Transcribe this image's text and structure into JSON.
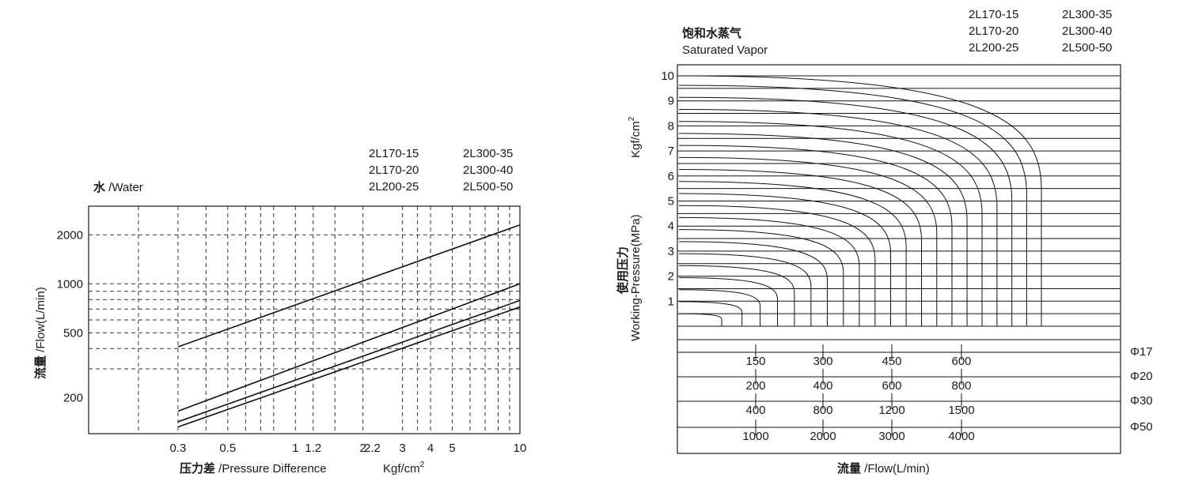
{
  "chart_data": [
    {
      "type": "line",
      "title": "水 /Water",
      "title_cn": "水",
      "title_en": " /Water",
      "xlabel_cn": "压力差",
      "xlabel_en": " /Pressure Difference",
      "xunit": "Kgf/cm",
      "xunit_sup": "2",
      "ylabel_cn": "流量",
      "ylabel_en": " /Flow(L/min)",
      "x_scale": "log",
      "y_scale": "log",
      "xlim": [
        0.12,
        10
      ],
      "ylim": [
        120,
        3000
      ],
      "grid": true,
      "grid_style": "dashed",
      "x_ticks": [
        {
          "v": 0.3,
          "label": "0.3"
        },
        {
          "v": 0.5,
          "label": "0.5"
        },
        {
          "v": 1,
          "label": "1"
        },
        {
          "v": 1.2,
          "label": "1.2"
        },
        {
          "v": 2,
          "label": "2"
        },
        {
          "v": 2.2,
          "label": "2.2"
        },
        {
          "v": 3,
          "label": "3"
        },
        {
          "v": 4,
          "label": "4"
        },
        {
          "v": 5,
          "label": "5"
        },
        {
          "v": 10,
          "label": "10"
        }
      ],
      "x_grid": [
        0.2,
        0.3,
        0.4,
        0.5,
        0.6,
        0.7,
        0.8,
        1,
        1.2,
        1.5,
        2,
        3,
        3.5,
        4,
        5,
        6,
        7,
        8,
        9
      ],
      "y_ticks": [
        {
          "v": 2000,
          "label": "2000"
        },
        {
          "v": 1000,
          "label": "1000"
        },
        {
          "v": 500,
          "label": "500"
        },
        {
          "v": 200,
          "label": "200"
        }
      ],
      "y_grid": [
        300,
        400,
        500,
        600,
        700,
        800,
        900,
        1000,
        2000
      ],
      "legend": {
        "col1": [
          "2L170-15",
          "2L170-20",
          "2L200-25"
        ],
        "col2": [
          "2L300-35",
          "2L300-40",
          "2L500-50"
        ]
      },
      "series": [
        {
          "x": [
            0.3,
            10
          ],
          "y": [
            410,
            2300
          ]
        },
        {
          "x": [
            0.3,
            10
          ],
          "y": [
            165,
            1000
          ]
        },
        {
          "x": [
            0.3,
            10
          ],
          "y": [
            142,
            790
          ]
        },
        {
          "x": [
            0.3,
            10
          ],
          "y": [
            132,
            720
          ]
        }
      ]
    },
    {
      "type": "line",
      "title_cn": "饱和水蒸气",
      "title_en": "Saturated Vapor",
      "ylabel_cn": "使用压力",
      "ylabel_en": "Working-Pressure(MPa)",
      "yunit": "Kgf/cm",
      "yunit_sup": "2",
      "xlabel_cn": "流量",
      "xlabel_en": " /Flow(L/min)",
      "y_ticks": [
        "1",
        "2",
        "3",
        "4",
        "5",
        "6",
        "7",
        "8",
        "9",
        "10"
      ],
      "legend": {
        "col1": [
          "2L170-15",
          "2L170-20",
          "2L200-25"
        ],
        "col2": [
          "2L300-35",
          "2L300-40",
          "2L500-50"
        ]
      },
      "flow_scales": [
        {
          "name": "Φ17",
          "values": [
            "150",
            "300",
            "450",
            "600"
          ]
        },
        {
          "name": "Φ20",
          "values": [
            "200",
            "400",
            "600",
            "800"
          ]
        },
        {
          "name": "Φ30",
          "values": [
            "400",
            "800",
            "1200",
            "1500"
          ]
        },
        {
          "name": "Φ50",
          "values": [
            "1000",
            "2000",
            "3000",
            "4000"
          ]
        }
      ],
      "curve_count": 21
    }
  ]
}
